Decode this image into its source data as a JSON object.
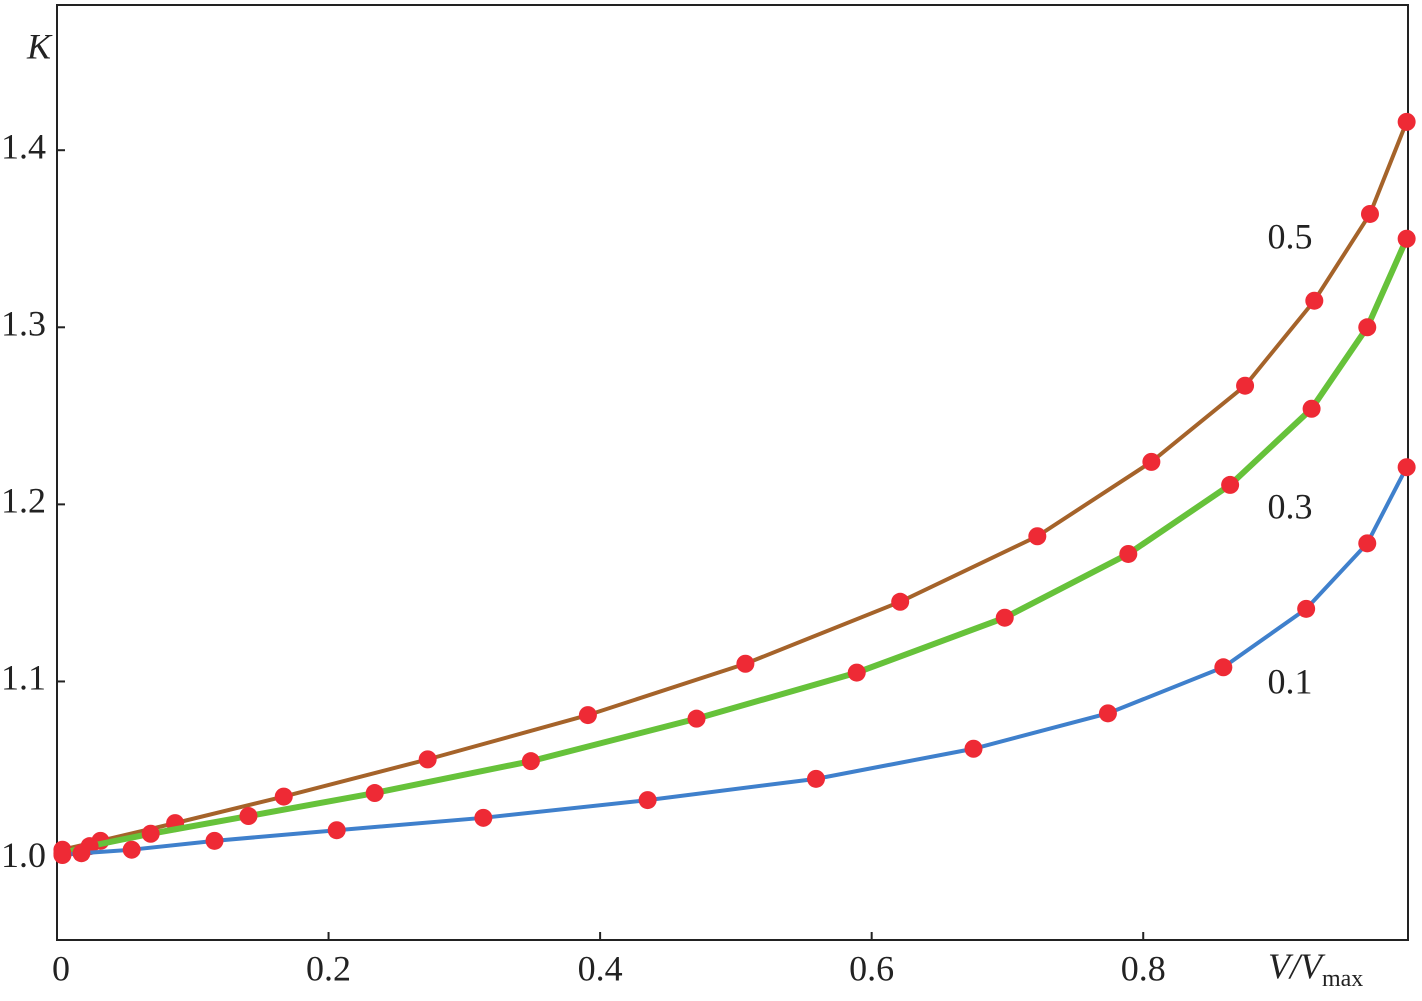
{
  "chart_data": {
    "type": "line",
    "x_label": {
      "main": "V/V",
      "sub": "max"
    },
    "y_label": "K",
    "xlim": [
      0,
      0.995
    ],
    "ylim": [
      0.954,
      1.482
    ],
    "xticks": [
      0,
      0.2,
      0.4,
      0.6,
      0.8
    ],
    "yticks": [
      {
        "value": 1,
        "label": "1.0"
      },
      1.1,
      1.2,
      1.3,
      1.4
    ],
    "marker_color": "#ee2a35",
    "series": [
      {
        "name": "0.5",
        "color": "#a5632a",
        "x": [
          0.004,
          0.032,
          0.087,
          0.167,
          0.273,
          0.391,
          0.507,
          0.621,
          0.722,
          0.806,
          0.875,
          0.926,
          0.967,
          0.994
        ],
        "values": [
          1.005,
          1.01,
          1.02,
          1.035,
          1.056,
          1.081,
          1.11,
          1.145,
          1.182,
          1.224,
          1.267,
          1.315,
          1.364,
          1.416
        ]
      },
      {
        "name": "0.3",
        "color": "#66c23a",
        "x": [
          0.004,
          0.024,
          0.069,
          0.141,
          0.234,
          0.349,
          0.471,
          0.589,
          0.698,
          0.789,
          0.864,
          0.924,
          0.965,
          0.994
        ],
        "values": [
          1.003,
          1.007,
          1.014,
          1.024,
          1.037,
          1.055,
          1.079,
          1.105,
          1.136,
          1.172,
          1.211,
          1.254,
          1.3,
          1.35
        ]
      },
      {
        "name": "0.1",
        "color": "#3f80cc",
        "x": [
          0.004,
          0.018,
          0.055,
          0.116,
          0.206,
          0.314,
          0.435,
          0.559,
          0.675,
          0.774,
          0.859,
          0.92,
          0.965,
          0.994
        ],
        "values": [
          1.002,
          1.003,
          1.005,
          1.01,
          1.016,
          1.023,
          1.033,
          1.045,
          1.062,
          1.082,
          1.108,
          1.141,
          1.178,
          1.221
        ]
      }
    ]
  }
}
